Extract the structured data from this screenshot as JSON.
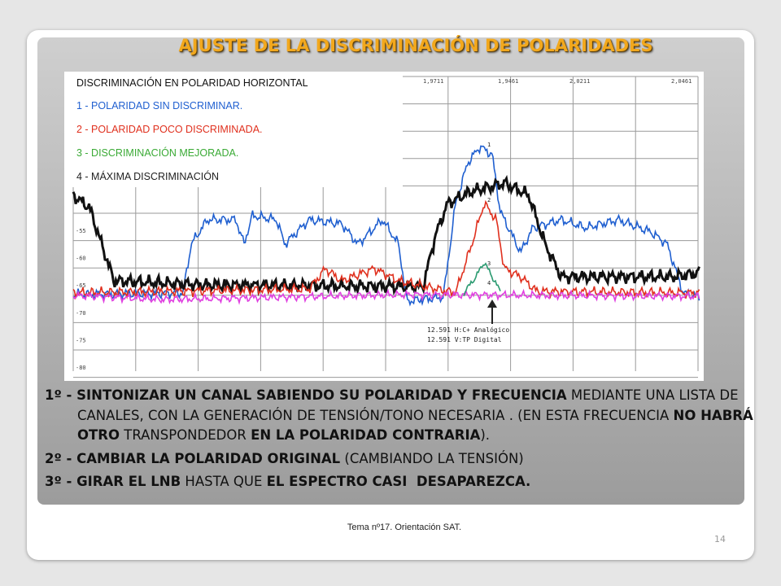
{
  "title": "AJUSTE DE LA DISCRIMINACIÓN DE POLARIDADES",
  "legend": {
    "heading": "DISCRIMINACIÓN EN POLARIDAD HORIZONTAL",
    "items": [
      {
        "text": "1 - POLARIDAD SIN DISCRIMINAR.",
        "color": "#1f5fd0"
      },
      {
        "text": "2 - POLARIDAD POCO DISCRIMINADA.",
        "color": "#e0301e"
      },
      {
        "text": "3 - DISCRIMINACIÓN MEJORADA.",
        "color": "#3aaa35"
      },
      {
        "text": "4 - MÁXIMA DISCRIMINACIÓN",
        "color": "#222222"
      }
    ]
  },
  "plot": {
    "top_labels": [
      "1,9711",
      "1,9461",
      "2,0211",
      "2,0461"
    ],
    "y_labels": [
      "-55",
      "-60",
      "-65",
      "-70",
      "-75",
      "-80"
    ],
    "trace_markers": [
      "1",
      "2",
      "3",
      "4"
    ],
    "annotation": [
      "12.591 H:C+ Analógico",
      "12.591 V:TP Digital"
    ]
  },
  "steps": [
    {
      "runs": [
        {
          "text": "1º - SINTONIZAR UN CANAL SABIENDO SU POLARIDAD Y FRECUENCIA",
          "bold": true
        },
        {
          "text": " MEDIANTE UNA LISTA DE CANALES, CON LA GENERACIÓN DE TENSIÓN/TONO NECESARIA . (EN ESTA FRECUENCIA ",
          "bold": false
        },
        {
          "text": "NO HABRÁ OTRO",
          "bold": true
        },
        {
          "text": " TRANSPONDEDOR ",
          "bold": false
        },
        {
          "text": "EN LA POLARIDAD CONTRARIA",
          "bold": true
        },
        {
          "text": ").",
          "bold": false
        }
      ]
    },
    {
      "runs": [
        {
          "text": "2º - CAMBIAR LA POLARIDAD ORIGINAL",
          "bold": true
        },
        {
          "text": " (CAMBIANDO LA TENSIÓN)",
          "bold": false
        }
      ]
    },
    {
      "runs": [
        {
          "text": "3º - GIRAR EL LNB",
          "bold": true
        },
        {
          "text": " HASTA QUE ",
          "bold": false
        },
        {
          "text": "EL ESPECTRO CASI  DESAPAREZCA.",
          "bold": true
        }
      ]
    }
  ],
  "footer": "Tema nº17. Orientación SAT.",
  "page_number": "14"
}
